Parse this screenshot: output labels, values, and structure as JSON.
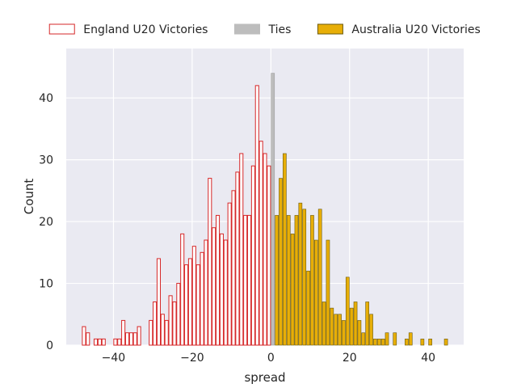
{
  "chart_data": {
    "type": "bar",
    "subtype": "histogram",
    "xlabel": "spread",
    "ylabel": "Count",
    "xlim": [
      -52,
      49
    ],
    "ylim": [
      0,
      48
    ],
    "xticks": [
      -40,
      -20,
      0,
      20,
      40
    ],
    "yticks": [
      0,
      10,
      20,
      30,
      40
    ],
    "bin_width": 1,
    "grid": true,
    "legend_position": "top",
    "legend_style": "horizontal row above plot",
    "series": [
      {
        "name": "England U20 Victories",
        "style": "outline",
        "edge_color": "#d62728",
        "fill_color": "#ffffff",
        "bins": [
          [
            -48,
            3
          ],
          [
            -47,
            2
          ],
          [
            -45,
            1
          ],
          [
            -44,
            1
          ],
          [
            -43,
            1
          ],
          [
            -40,
            1
          ],
          [
            -39,
            1
          ],
          [
            -38,
            4
          ],
          [
            -37,
            2
          ],
          [
            -36,
            2
          ],
          [
            -35,
            2
          ],
          [
            -34,
            3
          ],
          [
            -31,
            4
          ],
          [
            -30,
            7
          ],
          [
            -29,
            14
          ],
          [
            -28,
            5
          ],
          [
            -27,
            4
          ],
          [
            -26,
            8
          ],
          [
            -25,
            7
          ],
          [
            -24,
            10
          ],
          [
            -23,
            18
          ],
          [
            -22,
            13
          ],
          [
            -21,
            14
          ],
          [
            -20,
            16
          ],
          [
            -19,
            13
          ],
          [
            -18,
            15
          ],
          [
            -17,
            17
          ],
          [
            -16,
            27
          ],
          [
            -15,
            19
          ],
          [
            -14,
            21
          ],
          [
            -13,
            18
          ],
          [
            -12,
            17
          ],
          [
            -11,
            23
          ],
          [
            -10,
            25
          ],
          [
            -9,
            28
          ],
          [
            -8,
            31
          ],
          [
            -7,
            21
          ],
          [
            -6,
            21
          ],
          [
            -5,
            29
          ],
          [
            -4,
            42
          ],
          [
            -3,
            33
          ],
          [
            -2,
            31
          ],
          [
            -1,
            29
          ]
        ]
      },
      {
        "name": "Ties",
        "style": "filled",
        "edge_color": "#9f9f9f",
        "fill_color": "#bdbdbd",
        "bins": [
          [
            0,
            44
          ]
        ]
      },
      {
        "name": "Australia U20 Victories",
        "style": "filled",
        "edge_color": "#6b5a0e",
        "fill_color": "#e7ae07",
        "bins": [
          [
            1,
            21
          ],
          [
            2,
            27
          ],
          [
            3,
            31
          ],
          [
            4,
            21
          ],
          [
            5,
            18
          ],
          [
            6,
            21
          ],
          [
            7,
            23
          ],
          [
            8,
            22
          ],
          [
            9,
            12
          ],
          [
            10,
            21
          ],
          [
            11,
            17
          ],
          [
            12,
            22
          ],
          [
            13,
            7
          ],
          [
            14,
            17
          ],
          [
            15,
            6
          ],
          [
            16,
            5
          ],
          [
            17,
            5
          ],
          [
            18,
            4
          ],
          [
            19,
            11
          ],
          [
            20,
            6
          ],
          [
            21,
            7
          ],
          [
            22,
            4
          ],
          [
            23,
            2
          ],
          [
            24,
            7
          ],
          [
            25,
            5
          ],
          [
            26,
            1
          ],
          [
            27,
            1
          ],
          [
            28,
            1
          ],
          [
            29,
            2
          ],
          [
            31,
            2
          ],
          [
            34,
            1
          ],
          [
            35,
            2
          ],
          [
            38,
            1
          ],
          [
            40,
            1
          ],
          [
            44,
            1
          ]
        ]
      }
    ]
  },
  "colors": {
    "plot_background": "#eaeaf2",
    "grid": "#ffffff",
    "text": "#262626"
  }
}
